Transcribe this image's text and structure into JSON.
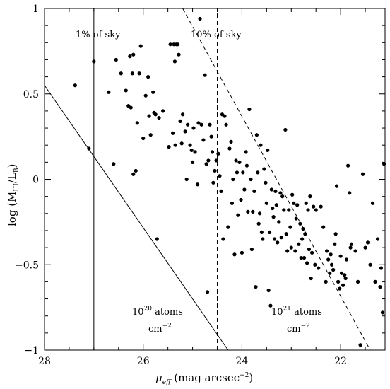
{
  "chart_data": {
    "type": "scatter",
    "xlabel_sym": "μ",
    "xlabel_sub": "eff",
    "xlabel_rest": " (mag arcsec",
    "xlabel_sup": "−2",
    "xlabel_close": ")",
    "ylabel_main": "log (M",
    "ylabel_sub": "HI",
    "ylabel_mid": "/L",
    "ylabel_sub2": "B",
    "ylabel_close": ")",
    "xlim": [
      28,
      21.1
    ],
    "ylim": [
      -1,
      1
    ],
    "x_reversed": true,
    "x_ticks": [
      28,
      26,
      24,
      22
    ],
    "x_tick_labels": [
      "28",
      "26",
      "24",
      "22"
    ],
    "y_ticks": [
      -1,
      -0.5,
      0,
      0.5,
      1
    ],
    "y_tick_labels": [
      "−1",
      "−0.5",
      "0",
      "0.5",
      "1"
    ],
    "grid": false,
    "legend": "none",
    "annotations": {
      "sky1": "1%  of sky",
      "sky10": "10%  of sky",
      "atoms20_base": "10",
      "atoms20_exp": "20",
      "atoms20_rest": " atoms",
      "atoms20_unit_base": "cm",
      "atoms20_unit_exp": "−2",
      "atoms21_base": "10",
      "atoms21_exp": "21",
      "atoms21_rest": " atoms",
      "atoms21_unit_base": "cm",
      "atoms21_unit_exp": "−2"
    },
    "reference_lines": [
      {
        "kind": "vertical",
        "style": "solid",
        "x": 27.0
      },
      {
        "kind": "vertical",
        "style": "dashed",
        "x": 24.5
      },
      {
        "kind": "segment",
        "style": "solid",
        "points": [
          [
            28,
            0.55
          ],
          [
            24.28,
            -1.0
          ]
        ]
      },
      {
        "kind": "segment",
        "style": "dashed",
        "points": [
          [
            25.2,
            1.0
          ],
          [
            21.4,
            -1.0
          ]
        ]
      }
    ],
    "points": [
      [
        27.38,
        0.55
      ],
      [
        27.1,
        0.18
      ],
      [
        27.0,
        0.69
      ],
      [
        26.7,
        0.51
      ],
      [
        26.6,
        0.09
      ],
      [
        26.55,
        0.7
      ],
      [
        26.45,
        0.62
      ],
      [
        26.35,
        0.52
      ],
      [
        26.3,
        0.43
      ],
      [
        26.27,
        0.72
      ],
      [
        26.25,
        0.42
      ],
      [
        26.22,
        0.62
      ],
      [
        26.2,
        0.73
      ],
      [
        26.2,
        0.03
      ],
      [
        26.15,
        0.05
      ],
      [
        26.12,
        0.33
      ],
      [
        26.08,
        0.62
      ],
      [
        26.05,
        0.78
      ],
      [
        26.0,
        0.24
      ],
      [
        25.95,
        0.49
      ],
      [
        25.9,
        0.6
      ],
      [
        25.88,
        0.37
      ],
      [
        25.85,
        0.26
      ],
      [
        25.8,
        0.51
      ],
      [
        25.78,
        0.39
      ],
      [
        25.75,
        0.38
      ],
      [
        25.72,
        -0.35
      ],
      [
        25.68,
        0.36
      ],
      [
        25.6,
        0.4
      ],
      [
        25.48,
        0.19
      ],
      [
        25.45,
        0.79
      ],
      [
        25.4,
        0.27
      ],
      [
        25.38,
        0.79
      ],
      [
        25.36,
        0.69
      ],
      [
        25.35,
        0.2
      ],
      [
        25.33,
        0.79
      ],
      [
        25.3,
        0.79
      ],
      [
        25.28,
        0.73
      ],
      [
        25.25,
        0.34
      ],
      [
        25.22,
        0.21
      ],
      [
        25.2,
        0.38
      ],
      [
        25.15,
        0.28
      ],
      [
        25.12,
        0.0
      ],
      [
        25.1,
        0.32
      ],
      [
        25.05,
        0.2
      ],
      [
        25.02,
        0.17
      ],
      [
        25.0,
        0.1
      ],
      [
        24.98,
        0.3
      ],
      [
        24.95,
        0.16
      ],
      [
        24.9,
        -0.03
      ],
      [
        24.88,
        0.33
      ],
      [
        24.85,
        0.94
      ],
      [
        24.82,
        0.32
      ],
      [
        24.78,
        0.23
      ],
      [
        24.75,
        0.61
      ],
      [
        24.72,
        0.09
      ],
      [
        24.7,
        -0.66
      ],
      [
        24.68,
        0.11
      ],
      [
        24.65,
        0.32
      ],
      [
        24.62,
        0.25
      ],
      [
        24.6,
        0.16
      ],
      [
        24.58,
        -0.02
      ],
      [
        24.55,
        0.05
      ],
      [
        24.52,
        0.11
      ],
      [
        24.48,
        0.15
      ],
      [
        24.45,
        0.02
      ],
      [
        24.42,
        -0.07
      ],
      [
        24.4,
        0.38
      ],
      [
        24.38,
        -0.35
      ],
      [
        24.35,
        0.37
      ],
      [
        24.32,
        0.32
      ],
      [
        24.28,
        -0.28
      ],
      [
        24.25,
        0.18
      ],
      [
        24.22,
        0.22
      ],
      [
        24.2,
        -0.14
      ],
      [
        24.18,
        0.0
      ],
      [
        24.15,
        -0.44
      ],
      [
        24.12,
        0.11
      ],
      [
        24.1,
        0.04
      ],
      [
        24.08,
        -0.21
      ],
      [
        24.05,
        0.1
      ],
      [
        24.02,
        -0.12
      ],
      [
        24.0,
        -0.43
      ],
      [
        23.98,
        0.04
      ],
      [
        23.95,
        -0.06
      ],
      [
        23.92,
        0.16
      ],
      [
        23.9,
        0.08
      ],
      [
        23.88,
        -0.19
      ],
      [
        23.85,
        0.41
      ],
      [
        23.82,
        0.0
      ],
      [
        23.8,
        -0.41
      ],
      [
        23.78,
        -0.19
      ],
      [
        23.75,
        -0.07
      ],
      [
        23.72,
        -0.63
      ],
      [
        23.7,
        0.26
      ],
      [
        23.68,
        0.04
      ],
      [
        23.66,
        -0.26
      ],
      [
        23.64,
        -0.2
      ],
      [
        23.62,
        0.2
      ],
      [
        23.6,
        -0.31
      ],
      [
        23.58,
        -0.35
      ],
      [
        23.55,
        0.06
      ],
      [
        23.52,
        -0.02
      ],
      [
        23.5,
        -0.14
      ],
      [
        23.48,
        0.17
      ],
      [
        23.46,
        -0.65
      ],
      [
        23.44,
        -0.31
      ],
      [
        23.42,
        -0.74
      ],
      [
        23.4,
        -0.06
      ],
      [
        23.38,
        -0.17
      ],
      [
        23.36,
        -0.22
      ],
      [
        23.34,
        -0.35
      ],
      [
        23.32,
        -0.07
      ],
      [
        23.3,
        -0.15
      ],
      [
        23.28,
        -0.37
      ],
      [
        23.25,
        -0.25
      ],
      [
        23.22,
        -0.08
      ],
      [
        23.2,
        -0.34
      ],
      [
        23.18,
        -0.1
      ],
      [
        23.15,
        -0.18
      ],
      [
        23.12,
        0.29
      ],
      [
        23.1,
        -0.32
      ],
      [
        23.08,
        -0.42
      ],
      [
        23.05,
        -0.18
      ],
      [
        23.02,
        -0.28
      ],
      [
        23.0,
        -0.4
      ],
      [
        22.98,
        -0.09
      ],
      [
        22.95,
        -0.14
      ],
      [
        22.92,
        -0.42
      ],
      [
        22.9,
        -0.23
      ],
      [
        22.88,
        -0.15
      ],
      [
        22.85,
        -0.38
      ],
      [
        22.82,
        -0.26
      ],
      [
        22.8,
        -0.46
      ],
      [
        22.78,
        -0.35
      ],
      [
        22.76,
        -0.29
      ],
      [
        22.74,
        -0.46
      ],
      [
        22.72,
        -0.32
      ],
      [
        22.7,
        -0.14
      ],
      [
        22.68,
        -0.49
      ],
      [
        22.66,
        -0.18
      ],
      [
        22.64,
        -0.41
      ],
      [
        22.62,
        -0.1
      ],
      [
        22.6,
        -0.58
      ],
      [
        22.58,
        -0.43
      ],
      [
        22.55,
        -0.16
      ],
      [
        22.52,
        -0.5
      ],
      [
        22.5,
        -0.18
      ],
      [
        22.45,
        -0.52
      ],
      [
        22.4,
        -0.16
      ],
      [
        22.35,
        -0.28
      ],
      [
        22.3,
        -0.6
      ],
      [
        22.28,
        -0.42
      ],
      [
        22.25,
        -0.47
      ],
      [
        22.22,
        -0.55
      ],
      [
        22.2,
        -0.44
      ],
      [
        22.18,
        -0.5
      ],
      [
        22.15,
        -0.53
      ],
      [
        22.12,
        -0.38
      ],
      [
        22.1,
        -0.32
      ],
      [
        22.08,
        -0.04
      ],
      [
        22.05,
        -0.6
      ],
      [
        22.02,
        -0.64
      ],
      [
        22.0,
        -0.45
      ],
      [
        21.98,
        -0.55
      ],
      [
        21.95,
        -0.62
      ],
      [
        21.92,
        -0.56
      ],
      [
        21.9,
        -0.58
      ],
      [
        21.88,
        -0.47
      ],
      [
        21.85,
        0.08
      ],
      [
        21.82,
        -0.08
      ],
      [
        21.8,
        -0.4
      ],
      [
        21.78,
        -0.38
      ],
      [
        21.7,
        -0.42
      ],
      [
        21.65,
        -0.6
      ],
      [
        21.6,
        -0.97
      ],
      [
        21.55,
        0.03
      ],
      [
        21.5,
        -0.4
      ],
      [
        21.45,
        -0.37
      ],
      [
        21.4,
        -0.5
      ],
      [
        21.35,
        -0.14
      ],
      [
        21.3,
        -0.6
      ],
      [
        21.25,
        -0.35
      ],
      [
        21.2,
        -0.63
      ],
      [
        21.18,
        -0.52
      ],
      [
        21.15,
        -0.78
      ],
      [
        21.12,
        0.09
      ]
    ]
  }
}
